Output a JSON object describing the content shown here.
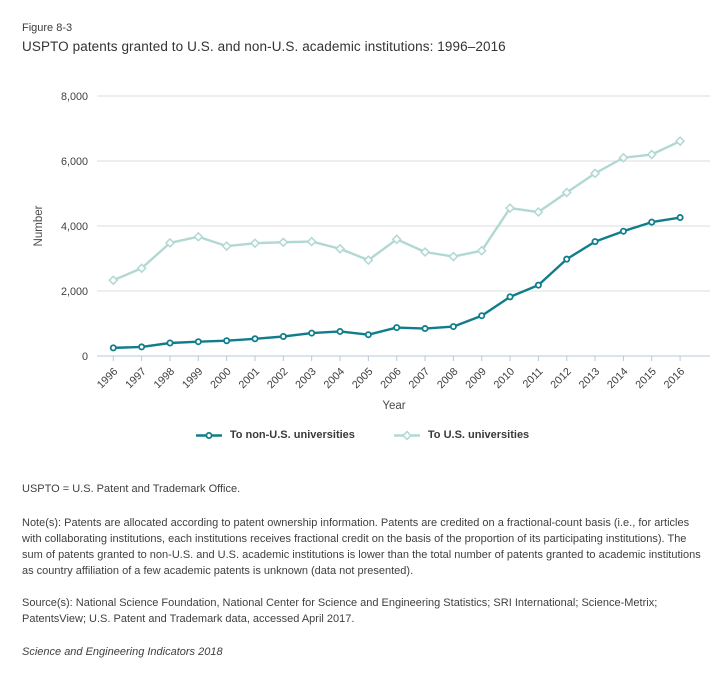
{
  "figure_label": "Figure 8-3",
  "title": "USPTO patents granted to U.S. and non-U.S. academic institutions: 1996–2016",
  "colors": {
    "non_us_series": "#107E8A",
    "us_series": "#B2D8D4",
    "gridline": "#DDDDDD",
    "axis": "#B7C8D8",
    "text": "#3F3F3F"
  },
  "chart_data": {
    "type": "line",
    "title": "USPTO patents granted to U.S. and non-U.S. academic institutions: 1996–2016",
    "x": [
      1996,
      1997,
      1998,
      1999,
      2000,
      2001,
      2002,
      2003,
      2004,
      2005,
      2006,
      2007,
      2008,
      2009,
      2010,
      2011,
      2012,
      2013,
      2014,
      2015,
      2016
    ],
    "series": [
      {
        "name": "To non-U.S. universities",
        "marker": "circle",
        "color": "#107E8A",
        "values": [
          250,
          280,
          400,
          440,
          470,
          530,
          600,
          705,
          755,
          655,
          875,
          845,
          905,
          1240,
          1820,
          2180,
          2980,
          3520,
          3840,
          4120,
          4260
        ]
      },
      {
        "name": "To U.S. universities",
        "marker": "diamond",
        "color": "#B2D8D4",
        "values": [
          2330,
          2700,
          3480,
          3670,
          3380,
          3470,
          3500,
          3520,
          3300,
          2950,
          3590,
          3200,
          3060,
          3240,
          4550,
          4430,
          5030,
          5620,
          6100,
          6200,
          6610
        ]
      }
    ],
    "xlabel": "Year",
    "ylabel": "Number",
    "ylim": [
      0,
      8000
    ],
    "yticks": [
      0,
      2000,
      4000,
      6000,
      8000
    ],
    "ytick_labels": [
      "0",
      "2,000",
      "4,000",
      "6,000",
      "8,000"
    ],
    "grid": true,
    "legend_position": "bottom"
  },
  "legend": {
    "items": [
      {
        "label": "To non-U.S. universities"
      },
      {
        "label": "To U.S. universities"
      }
    ]
  },
  "footer": {
    "abbrev": "USPTO = U.S. Patent and Trademark Office.",
    "notes": "Note(s): Patents are allocated according to patent ownership information. Patents are credited on a fractional-count basis (i.e., for articles with collaborating institutions, each institutions receives fractional credit on the basis of the proportion of its participating institutions). The sum of patents granted to non-U.S. and U.S. academic institutions is lower than the total number of patents granted to academic institutions as country affiliation of a few academic patents is unknown (data not presented).",
    "sources": "Source(s): National Science Foundation, National Center for Science and Engineering Statistics; SRI International; Science-Metrix; PatentsView; U.S. Patent and Trademark data, accessed April 2017.",
    "credit": "Science and Engineering Indicators 2018"
  }
}
